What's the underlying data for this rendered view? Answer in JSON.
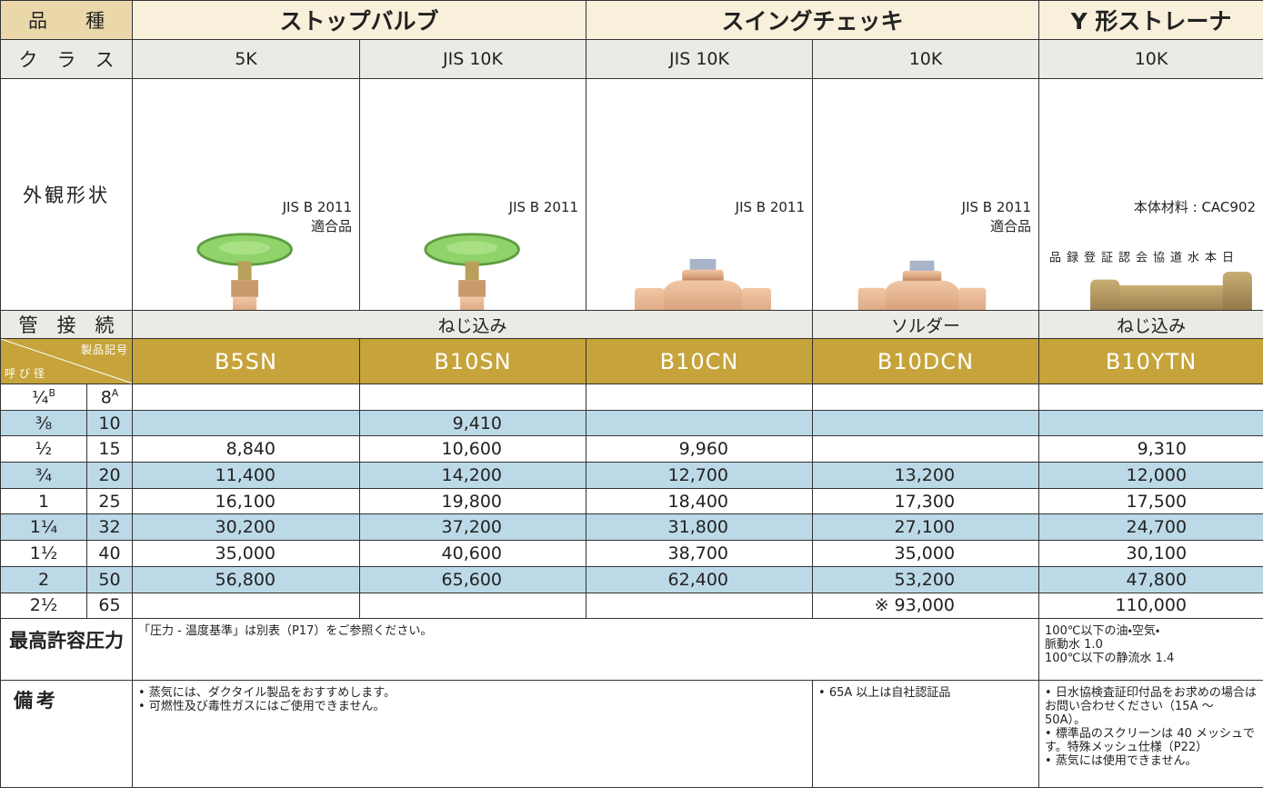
{
  "header": {
    "label": "品　　種",
    "types": [
      "ストップバルブ",
      "スイングチェッキ",
      "Y 形ストレーナ"
    ]
  },
  "class": {
    "label": "ク　ラ　ス",
    "values": [
      "5K",
      "JIS 10K",
      "JIS 10K",
      "10K",
      "10K"
    ]
  },
  "appearance": {
    "label": "外観形状",
    "notes": [
      [
        "JIS B 2011",
        "適合品"
      ],
      [
        "JIS B 2011"
      ],
      [
        "JIS B 2011"
      ],
      [
        "JIS B 2011",
        "適合品"
      ],
      [
        "本体材料 : CAC902"
      ]
    ],
    "vertical_note": "日本水道協会認証登録品"
  },
  "connection": {
    "label": "管　接　続",
    "values": [
      "ねじ込み",
      "ソルダー",
      "ねじ込み"
    ]
  },
  "codes": {
    "label_top": "製品記号",
    "label_bottom": "呼び径",
    "values": [
      "B5SN",
      "B10SN",
      "B10CN",
      "B10DCN",
      "B10YTN"
    ]
  },
  "sizes": {
    "inch_unit": "B",
    "mm_unit": "A",
    "rows": [
      {
        "inch": "¼",
        "mm": "8",
        "prices": [
          null,
          null,
          null,
          null,
          null
        ]
      },
      {
        "inch": "⅜",
        "mm": "10",
        "prices": [
          null,
          "9,410",
          null,
          null,
          null
        ]
      },
      {
        "inch": "½",
        "mm": "15",
        "prices": [
          "8,840",
          "10,600",
          "9,960",
          null,
          "9,310"
        ]
      },
      {
        "inch": "¾",
        "mm": "20",
        "prices": [
          "11,400",
          "14,200",
          "12,700",
          "13,200",
          "12,000"
        ]
      },
      {
        "inch": "1",
        "mm": "25",
        "prices": [
          "16,100",
          "19,800",
          "18,400",
          "17,300",
          "17,500"
        ]
      },
      {
        "inch": "1¼",
        "mm": "32",
        "prices": [
          "30,200",
          "37,200",
          "31,800",
          "27,100",
          "24,700"
        ]
      },
      {
        "inch": "1½",
        "mm": "40",
        "prices": [
          "35,000",
          "40,600",
          "38,700",
          "35,000",
          "30,100"
        ]
      },
      {
        "inch": "2",
        "mm": "50",
        "prices": [
          "56,800",
          "65,600",
          "62,400",
          "53,200",
          "47,800"
        ]
      },
      {
        "inch": "2½",
        "mm": "65",
        "prices": [
          null,
          null,
          null,
          "※ 93,000",
          "110,000"
        ]
      }
    ]
  },
  "pressure": {
    "label": "最高許容圧力",
    "note": "「圧力 - 温度基準」は別表（P17）をご参照ください。",
    "y_strainer": [
      "100℃以下の油・空気・",
      "脈動水 1.0",
      "100℃以下の静流水 1.4"
    ]
  },
  "remarks": {
    "label": "備考",
    "common": [
      "• 蒸気には、ダクタイル製品をおすすめします。",
      "• 可燃性及び毒性ガスにはご使用できません。"
    ],
    "solder": [
      "• 65A 以上は自社認証品"
    ],
    "y_strainer": [
      "• 日水協検査証印付品をお求めの場合はお問い合わせください（15A ～ 50A）。",
      "• 標準品のスクリーンは 40 メッシュです。特殊メッシュ仕様（P22）",
      "• 蒸気には使用できません。"
    ]
  }
}
